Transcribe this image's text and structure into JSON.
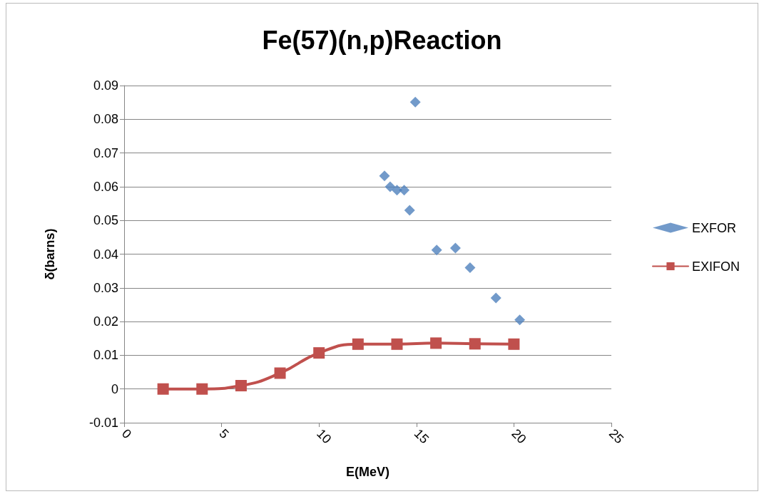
{
  "chart_data": {
    "type": "scatter",
    "title": "Fe(57)(n,p)Reaction",
    "xlabel": "E(MeV)",
    "ylabel": "δ(barns)",
    "xlim": [
      0,
      25
    ],
    "xticks": [
      0,
      5,
      10,
      15,
      20,
      25
    ],
    "ylim": [
      -0.01,
      0.09
    ],
    "yticks": [
      -0.01,
      0,
      0.01,
      0.02,
      0.03,
      0.04,
      0.05,
      0.06,
      0.07,
      0.08,
      0.09
    ],
    "grid": "y",
    "legend": "right",
    "series": [
      {
        "name": "EXFOR",
        "marker": "diamond",
        "color": "#4f81bd",
        "x": [
          13.36,
          13.65,
          14.0,
          14.37,
          14.65,
          14.94,
          16.04,
          17.0,
          17.75,
          19.08,
          20.3
        ],
        "values": [
          0.0632,
          0.06,
          0.059,
          0.059,
          0.053,
          0.0851,
          0.0412,
          0.0418,
          0.036,
          0.027,
          0.0205
        ]
      },
      {
        "name": "EXIFON",
        "type": "line",
        "marker": "square",
        "color": "#c0504d",
        "x": [
          2,
          4,
          6,
          8,
          10,
          12,
          14,
          16,
          18,
          20
        ],
        "values": [
          0,
          0,
          0.001,
          0.0047,
          0.0107,
          0.0133,
          0.0133,
          0.0136,
          0.0134,
          0.0133
        ]
      }
    ]
  }
}
